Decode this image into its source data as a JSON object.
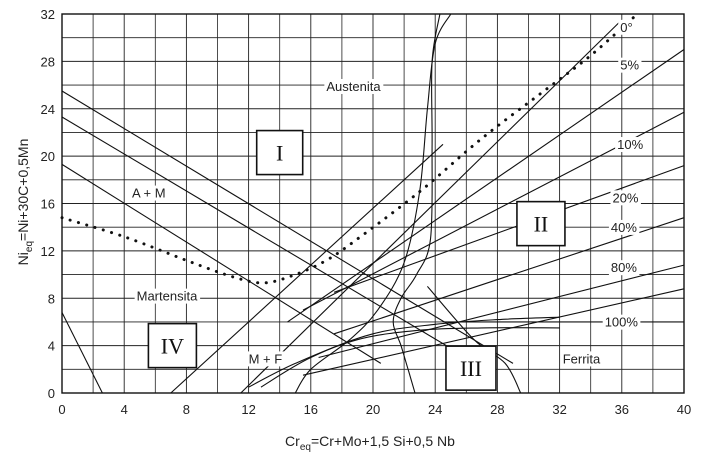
{
  "chart_data": {
    "type": "diagram",
    "xlabel": {
      "main": "Cr",
      "sub": "eq",
      "rest": "=Cr+Mo+1,5 Si+0,5 Nb"
    },
    "ylabel": {
      "main": "Ni",
      "sub": "eq",
      "rest": "=Ni+30C+0,5Mn"
    },
    "xlim": [
      0,
      40
    ],
    "ylim": [
      0,
      32
    ],
    "x_ticks": [
      0,
      4,
      8,
      12,
      16,
      20,
      24,
      28,
      32,
      36,
      40
    ],
    "y_ticks": [
      0,
      4,
      8,
      12,
      16,
      20,
      24,
      28,
      32
    ],
    "grid": true,
    "regions": [
      {
        "name": "Austenita",
        "x": 17,
        "y": 25.5
      },
      {
        "name": "A + M",
        "x": 4.5,
        "y": 16.5
      },
      {
        "name": "Martensita",
        "x": 4.8,
        "y": 7.8
      },
      {
        "name": "M + F",
        "x": 12,
        "y": 2.5
      },
      {
        "name": "Ferrita",
        "x": 32.2,
        "y": 2.5
      }
    ],
    "roman_labels": [
      {
        "text": "I",
        "x": 14,
        "y": 20.3
      },
      {
        "text": "II",
        "x": 30.8,
        "y": 14.3
      },
      {
        "text": "III",
        "x": 26.3,
        "y": 2.1
      },
      {
        "text": "IV",
        "x": 7.1,
        "y": 4
      }
    ],
    "ferrite_lines": [
      {
        "label": "0°",
        "label_at": [
          35.9,
          30.5
        ],
        "points": [
          [
            11.5,
            0
          ],
          [
            36,
            31.5
          ]
        ]
      },
      {
        "label": "5%",
        "label_at": [
          35.9,
          27.3
        ],
        "points": [
          [
            14.5,
            6
          ],
          [
            40,
            29
          ]
        ]
      },
      {
        "label": "10%",
        "label_at": [
          35.7,
          20.6
        ],
        "points": [
          [
            15.5,
            7
          ],
          [
            40,
            23.7
          ]
        ]
      },
      {
        "label": "20%",
        "label_at": [
          35.4,
          16.1
        ],
        "points": [
          [
            17.5,
            8.5
          ],
          [
            40,
            19.2
          ]
        ]
      },
      {
        "label": "40%",
        "label_at": [
          35.3,
          13.6
        ],
        "points": [
          [
            17.5,
            5
          ],
          [
            40,
            14.8
          ]
        ]
      },
      {
        "label": "80%",
        "label_at": [
          35.3,
          10.2
        ],
        "points": [
          [
            16.5,
            3
          ],
          [
            40,
            10.8
          ]
        ]
      },
      {
        "label": "100%",
        "label_at": [
          34.9,
          5.6
        ],
        "points": [
          [
            15.5,
            1.5
          ],
          [
            40,
            8.8
          ]
        ]
      }
    ],
    "boundary_lines": [
      {
        "points": [
          [
            0,
            25.5
          ],
          [
            29,
            2.5
          ]
        ]
      },
      {
        "points": [
          [
            0,
            23.3
          ],
          [
            26,
            3
          ]
        ]
      },
      {
        "points": [
          [
            0,
            19.3
          ],
          [
            20.5,
            2.5
          ]
        ]
      },
      {
        "points": [
          [
            0,
            6.8
          ],
          [
            2.6,
            0
          ]
        ]
      },
      {
        "points": [
          [
            7,
            0
          ],
          [
            24.5,
            21
          ]
        ]
      },
      {
        "points": [
          [
            24.5,
            6
          ],
          [
            40,
            6
          ]
        ]
      }
    ],
    "curves": [
      {
        "points": [
          [
            25,
            32
          ],
          [
            24,
            29.5
          ],
          [
            23.5,
            24
          ],
          [
            23,
            17
          ],
          [
            22,
            11
          ],
          [
            20.3,
            7
          ],
          [
            18.5,
            4.5
          ],
          [
            16,
            2
          ],
          [
            15,
            0
          ]
        ]
      },
      {
        "points": [
          [
            24.3,
            32
          ],
          [
            23.8,
            28
          ],
          [
            23.8,
            21
          ],
          [
            23.7,
            13
          ],
          [
            22.8,
            10
          ],
          [
            21.8,
            8
          ],
          [
            21.3,
            6
          ],
          [
            21.8,
            4
          ],
          [
            22.3,
            1.8
          ],
          [
            22.7,
            0
          ]
        ]
      },
      {
        "points": [
          [
            23.5,
            9
          ],
          [
            26.5,
            4.5
          ],
          [
            28.5,
            2.5
          ],
          [
            29.5,
            0
          ]
        ]
      },
      {
        "points": [
          [
            12,
            0.5
          ],
          [
            15,
            2.5
          ],
          [
            19,
            4.5
          ],
          [
            23,
            5.3
          ],
          [
            27,
            5.5
          ],
          [
            32,
            5.5
          ]
        ]
      },
      {
        "points": [
          [
            12.8,
            0.5
          ],
          [
            16,
            3
          ],
          [
            20,
            5
          ],
          [
            24,
            5.8
          ],
          [
            28,
            6.2
          ],
          [
            32,
            6.4
          ]
        ]
      }
    ],
    "dotted_curve": {
      "points": [
        [
          0,
          14.8
        ],
        [
          4,
          13.2
        ],
        [
          8,
          11.2
        ],
        [
          11,
          9.8
        ],
        [
          13,
          9.3
        ],
        [
          15,
          10
        ],
        [
          17,
          11.2
        ],
        [
          19,
          13
        ],
        [
          23,
          17
        ],
        [
          27,
          21.5
        ],
        [
          31,
          25.5
        ],
        [
          34,
          28.5
        ],
        [
          37,
          32
        ]
      ]
    }
  }
}
